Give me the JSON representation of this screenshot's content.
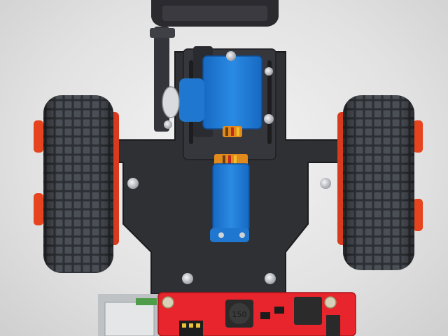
{
  "scene": {
    "subject": "robot-car-chassis-top-view",
    "colors": {
      "background": "#e4e4e4",
      "chassis": "#2f2f33",
      "tire": "#3a3d42",
      "rim": "#e6431f",
      "servo": "#1f7fd6",
      "pcb": "#e8242c",
      "screw": "#c9ccd1"
    }
  },
  "pcb": {
    "inductor_label": "150"
  }
}
